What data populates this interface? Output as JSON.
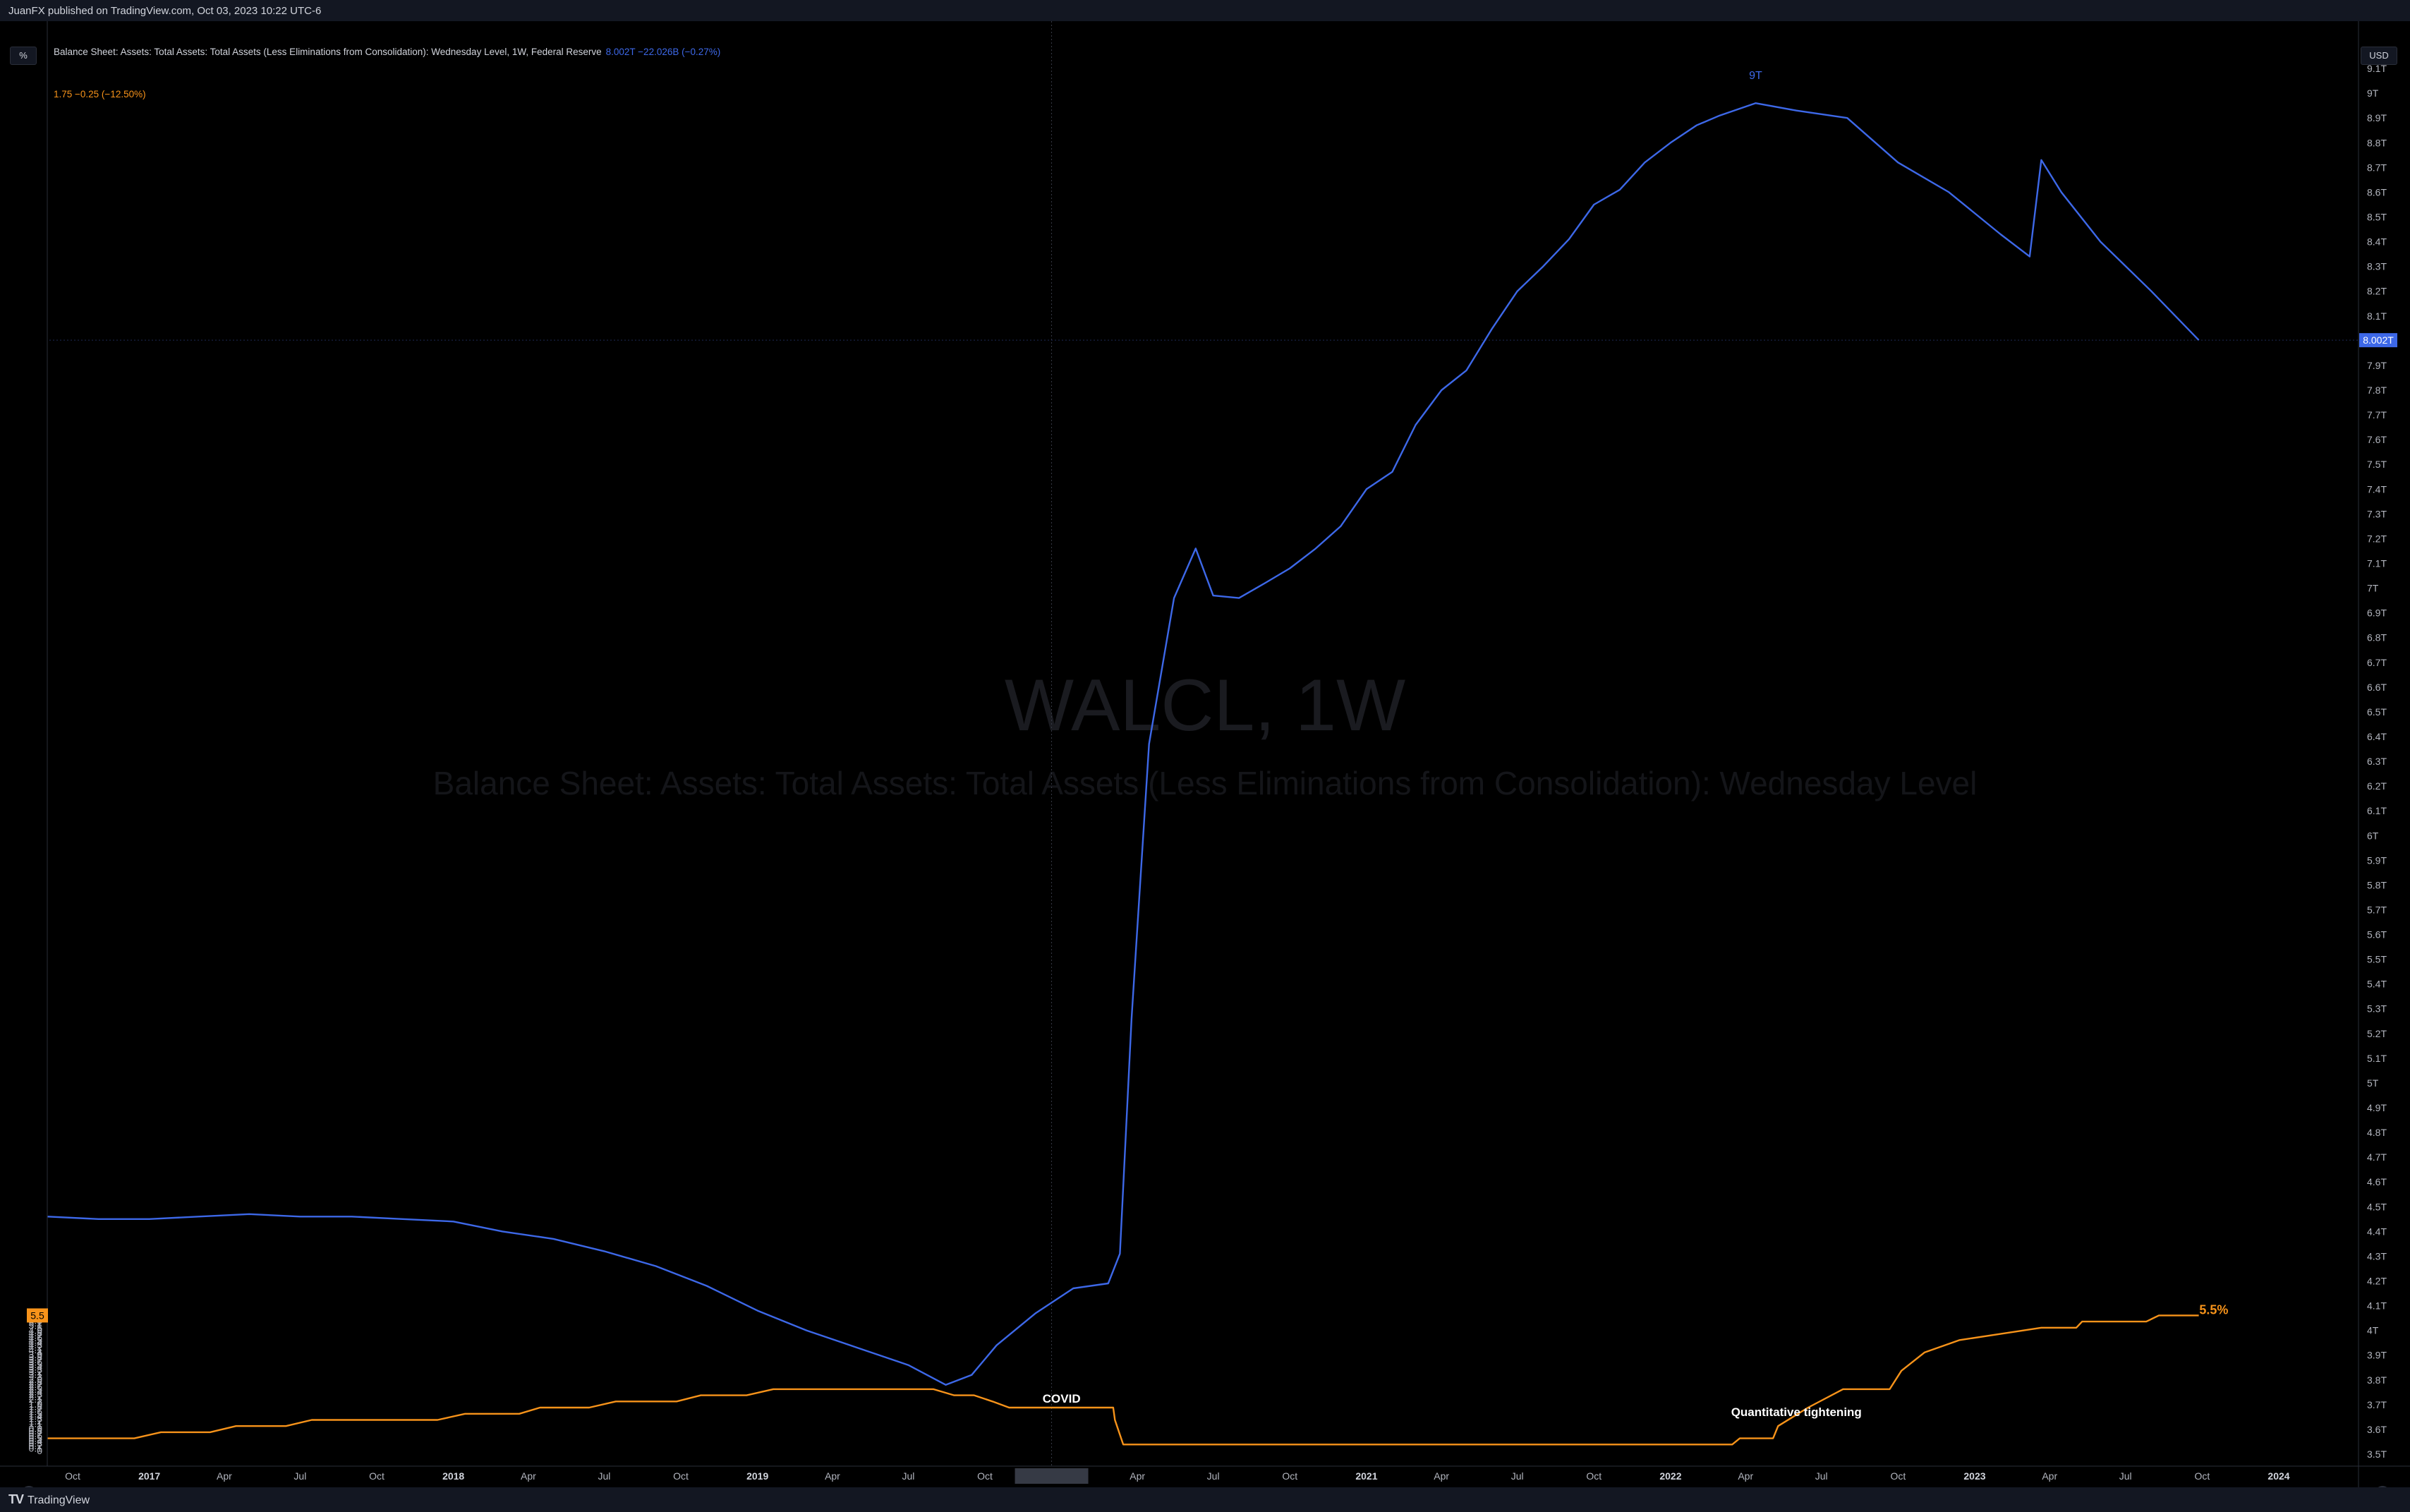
{
  "header": {
    "published": "JuanFX published on TradingView.com, Oct 03, 2023 10:22 UTC-6",
    "legend_title": "Balance Sheet: Assets: Total Assets: Total Assets (Less Eliminations from Consolidation): Wednesday Level, 1W, Federal Reserve",
    "legend_values": "8.002T  −22.026B (−0.27%)",
    "legend2": "1.75  −0.25 (−12.50%)",
    "left_scale_button": "%",
    "right_scale_button": "USD"
  },
  "footer": {
    "brand": "TradingView",
    "z_button": "Z",
    "a_button": "A"
  },
  "watermark": {
    "symbol": "WALCL, 1W",
    "description": "Balance Sheet: Assets: Total Assets: Total Assets (Less Eliminations from Consolidation): Wednesday Level"
  },
  "annotations": {
    "covid": "COVID",
    "qt": "Quantitative tightening",
    "nine_t": "9T",
    "five_five": "5.5%"
  },
  "colors": {
    "balance_sheet": "#3d68e8",
    "rate": "#f7931a",
    "background": "#000000",
    "panel": "#131722"
  },
  "chart_data": {
    "type": "line",
    "x_axis": {
      "tick_labels": [
        "Oct",
        "2017",
        "Apr",
        "Jul",
        "Oct",
        "2018",
        "Apr",
        "Jul",
        "Oct",
        "2019",
        "Apr",
        "Jul",
        "Oct",
        "2020",
        "Apr",
        "Jul",
        "Oct",
        "2021",
        "Apr",
        "Jul",
        "Oct",
        "2022",
        "Apr",
        "Jul",
        "Oct",
        "2023",
        "Apr",
        "Jul",
        "Oct",
        "2024"
      ],
      "range": [
        "2016-09-01",
        "2024-01-01"
      ]
    },
    "left_axis": {
      "unit": "%",
      "ticks": [
        "0",
        "0.1",
        "0.2",
        "0.3",
        "0.4",
        "0.5",
        "0.6",
        "0.7",
        "0.8",
        "0.9",
        "1",
        "1.1",
        "1.2",
        "1.3",
        "1.4",
        "1.5",
        "1.6",
        "1.7",
        "1.8",
        "1.9",
        "2",
        "2.1",
        "2.2",
        "2.3",
        "2.4",
        "2.5",
        "2.6",
        "2.7",
        "2.8",
        "2.9",
        "3",
        "3.1",
        "3.2",
        "3.3",
        "3.4",
        "3.5",
        "3.6",
        "3.7",
        "3.8",
        "3.9",
        "4",
        "4.1",
        "4.2",
        "4.3",
        "4.4",
        "4.5",
        "4.6",
        "4.7",
        "4.8",
        "4.9",
        "5",
        "5.1",
        "5.2",
        "5.3",
        "5.4",
        "5.5",
        "5.6"
      ],
      "last_value_label": "5.5"
    },
    "right_axis": {
      "unit": "USD",
      "ticks": [
        "3.5T",
        "3.6T",
        "3.7T",
        "3.8T",
        "3.9T",
        "4T",
        "4.1T",
        "4.2T",
        "4.3T",
        "4.4T",
        "4.5T",
        "4.6T",
        "4.7T",
        "4.8T",
        "4.9T",
        "5T",
        "5.1T",
        "5.2T",
        "5.3T",
        "5.4T",
        "5.5T",
        "5.6T",
        "5.7T",
        "5.8T",
        "5.9T",
        "6T",
        "6.1T",
        "6.2T",
        "6.3T",
        "6.4T",
        "6.5T",
        "6.6T",
        "6.7T",
        "6.8T",
        "6.9T",
        "7T",
        "7.1T",
        "7.2T",
        "7.3T",
        "7.4T",
        "7.5T",
        "7.6T",
        "7.7T",
        "7.8T",
        "7.9T",
        "8T",
        "8.1T",
        "8.2T",
        "8.3T",
        "8.4T",
        "8.5T",
        "8.6T",
        "8.7T",
        "8.8T",
        "8.9T",
        "9T",
        "9.1T"
      ],
      "last_value_label": "8.002T"
    },
    "series": [
      {
        "name": "Balance Sheet: Assets: Total Assets: Total Assets (Less Eliminations from Consolidation): Wednesday Level",
        "axis": "right",
        "unit": "USD trillions",
        "points": [
          [
            "2016-09-01",
            4.46
          ],
          [
            "2016-11-01",
            4.45
          ],
          [
            "2017-01-01",
            4.45
          ],
          [
            "2017-03-01",
            4.46
          ],
          [
            "2017-05-01",
            4.47
          ],
          [
            "2017-07-01",
            4.46
          ],
          [
            "2017-09-01",
            4.46
          ],
          [
            "2017-11-01",
            4.45
          ],
          [
            "2018-01-01",
            4.44
          ],
          [
            "2018-03-01",
            4.4
          ],
          [
            "2018-05-01",
            4.37
          ],
          [
            "2018-07-01",
            4.32
          ],
          [
            "2018-09-01",
            4.26
          ],
          [
            "2018-11-01",
            4.18
          ],
          [
            "2019-01-01",
            4.08
          ],
          [
            "2019-03-01",
            4.0
          ],
          [
            "2019-05-01",
            3.93
          ],
          [
            "2019-07-01",
            3.86
          ],
          [
            "2019-08-15",
            3.78
          ],
          [
            "2019-09-15",
            3.82
          ],
          [
            "2019-10-15",
            3.94
          ],
          [
            "2019-12-01",
            4.07
          ],
          [
            "2020-01-15",
            4.17
          ],
          [
            "2020-02-26",
            4.19
          ],
          [
            "2020-03-11",
            4.31
          ],
          [
            "2020-03-25",
            5.26
          ],
          [
            "2020-04-15",
            6.37
          ],
          [
            "2020-05-15",
            6.96
          ],
          [
            "2020-06-10",
            7.16
          ],
          [
            "2020-07-01",
            6.97
          ],
          [
            "2020-08-01",
            6.96
          ],
          [
            "2020-09-01",
            7.02
          ],
          [
            "2020-10-01",
            7.08
          ],
          [
            "2020-11-01",
            7.16
          ],
          [
            "2020-12-01",
            7.25
          ],
          [
            "2021-01-01",
            7.4
          ],
          [
            "2021-02-01",
            7.47
          ],
          [
            "2021-03-01",
            7.66
          ],
          [
            "2021-04-01",
            7.8
          ],
          [
            "2021-05-01",
            7.88
          ],
          [
            "2021-06-01",
            8.05
          ],
          [
            "2021-07-01",
            8.2
          ],
          [
            "2021-08-01",
            8.3
          ],
          [
            "2021-09-01",
            8.41
          ],
          [
            "2021-10-01",
            8.55
          ],
          [
            "2021-11-01",
            8.61
          ],
          [
            "2021-12-01",
            8.72
          ],
          [
            "2022-01-01",
            8.8
          ],
          [
            "2022-02-01",
            8.87
          ],
          [
            "2022-03-01",
            8.91
          ],
          [
            "2022-04-13",
            8.96
          ],
          [
            "2022-06-01",
            8.93
          ],
          [
            "2022-08-01",
            8.9
          ],
          [
            "2022-10-01",
            8.72
          ],
          [
            "2022-12-01",
            8.6
          ],
          [
            "2023-02-01",
            8.43
          ],
          [
            "2023-03-08",
            8.34
          ],
          [
            "2023-03-22",
            8.73
          ],
          [
            "2023-04-15",
            8.6
          ],
          [
            "2023-06-01",
            8.4
          ],
          [
            "2023-08-01",
            8.2
          ],
          [
            "2023-09-27",
            8.002
          ]
        ]
      },
      {
        "name": "Federal funds rate (upper bound)",
        "axis": "left",
        "unit": "%",
        "points": [
          [
            "2016-09-01",
            0.5
          ],
          [
            "2016-12-14",
            0.5
          ],
          [
            "2017-01-15",
            0.75
          ],
          [
            "2017-03-15",
            0.75
          ],
          [
            "2017-04-15",
            1.0
          ],
          [
            "2017-06-14",
            1.0
          ],
          [
            "2017-07-15",
            1.25
          ],
          [
            "2017-12-13",
            1.25
          ],
          [
            "2018-01-15",
            1.5
          ],
          [
            "2018-03-21",
            1.5
          ],
          [
            "2018-04-15",
            1.75
          ],
          [
            "2018-06-13",
            1.75
          ],
          [
            "2018-07-15",
            2.0
          ],
          [
            "2018-09-26",
            2.0
          ],
          [
            "2018-10-25",
            2.25
          ],
          [
            "2018-12-19",
            2.25
          ],
          [
            "2019-01-20",
            2.5
          ],
          [
            "2019-07-31",
            2.5
          ],
          [
            "2019-08-25",
            2.25
          ],
          [
            "2019-09-18",
            2.25
          ],
          [
            "2019-10-10",
            2.0
          ],
          [
            "2019-10-30",
            1.75
          ],
          [
            "2020-03-03",
            1.75
          ],
          [
            "2020-03-05",
            1.25
          ],
          [
            "2020-03-15",
            0.25
          ],
          [
            "2022-03-16",
            0.25
          ],
          [
            "2022-03-25",
            0.5
          ],
          [
            "2022-05-04",
            0.5
          ],
          [
            "2022-05-10",
            1.0
          ],
          [
            "2022-06-15",
            1.75
          ],
          [
            "2022-07-27",
            2.5
          ],
          [
            "2022-09-21",
            2.5
          ],
          [
            "2022-10-05",
            3.25
          ],
          [
            "2022-11-02",
            4.0
          ],
          [
            "2022-12-14",
            4.5
          ],
          [
            "2023-02-01",
            4.75
          ],
          [
            "2023-03-22",
            5.0
          ],
          [
            "2023-05-03",
            5.0
          ],
          [
            "2023-05-10",
            5.25
          ],
          [
            "2023-07-26",
            5.25
          ],
          [
            "2023-08-10",
            5.5
          ],
          [
            "2023-09-27",
            5.5
          ]
        ]
      }
    ],
    "annotations": [
      {
        "text": "COVID",
        "x": "2020-01-01",
        "y_pct": 1.95
      },
      {
        "text": "Quantitative tightening",
        "x": "2022-06-01",
        "y_pct": 1.4
      },
      {
        "text": "9T",
        "x": "2022-04-13",
        "y_usd_t": 9.0
      },
      {
        "text": "5.5%",
        "x": "2023-10-15",
        "y_pct": 5.5
      }
    ],
    "crosshair": {
      "x": "2019-12-20",
      "y_usd_t": 8.002
    },
    "grid": false
  }
}
